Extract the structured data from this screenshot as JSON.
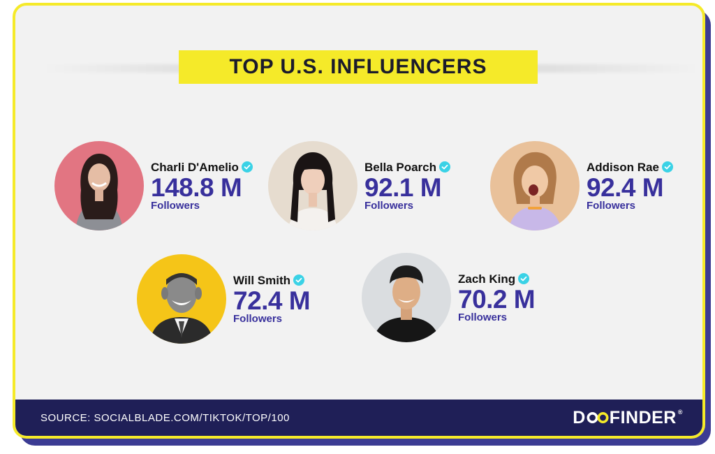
{
  "title": "TOP U.S. INFLUENCERS",
  "accent_yellow": "#f5ea29",
  "accent_navy": "#1f1f57",
  "count_color": "#38309c",
  "verified_color": "#3ad2e6",
  "influencers": [
    {
      "name": "Charli D'Amelio",
      "followers": "148.8 M",
      "label": "Followers",
      "avatar_bg": "#e06f7b",
      "verified_icon": "verified-check-icon"
    },
    {
      "name": "Bella Poarch",
      "followers": "92.1 M",
      "label": "Followers",
      "avatar_bg": "#e8ddd1",
      "verified_icon": "verified-check-icon"
    },
    {
      "name": "Addison Rae",
      "followers": "92.4 M",
      "label": "Followers",
      "avatar_bg": "#e9c19a",
      "verified_icon": "verified-check-icon"
    },
    {
      "name": "Will Smith",
      "followers": "72.4 M",
      "label": "Followers",
      "avatar_bg": "#f5c518",
      "verified_icon": "verified-check-icon"
    },
    {
      "name": "Zach King",
      "followers": "70.2 M",
      "label": "Followers",
      "avatar_bg": "#d9dde0",
      "verified_icon": "verified-check-icon"
    }
  ],
  "footer": {
    "source": "SOURCE: SOCIALBLADE.COM/TIKTOK/TOP/100",
    "brand_prefix": "D",
    "brand_suffix": "FINDER",
    "brand_reg": "®"
  }
}
